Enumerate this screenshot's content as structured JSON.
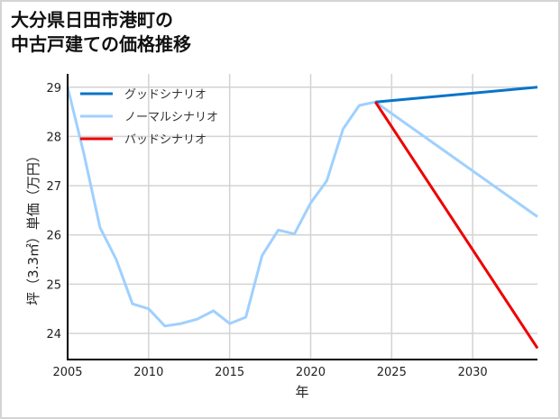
{
  "title": {
    "line1": "大分県日田市港町の",
    "line2": "中古戸建ての価格推移"
  },
  "colors": {
    "good": "#0a74c8",
    "normal": "#9fd0ff",
    "bad": "#ee0000",
    "grid": "#d3d3d3",
    "axis": "#000000",
    "frame": "#d4d4d4"
  },
  "chart_data": {
    "type": "line",
    "title": "大分県日田市港町の中古戸建ての価格推移",
    "xlabel": "年",
    "ylabel": "坪（3.3㎡）単価（万円）",
    "xlim": [
      2005,
      2034
    ],
    "ylim": [
      23.47,
      29.27
    ],
    "xticks": [
      2005,
      2010,
      2015,
      2020,
      2025,
      2030
    ],
    "yticks": [
      24,
      25,
      26,
      27,
      28,
      29
    ],
    "grid": true,
    "legend_position": "upper left",
    "series": [
      {
        "name": "グッドシナリオ",
        "color": "#0a74c8",
        "x": [
          2024,
          2034
        ],
        "y": [
          28.7,
          29.0
        ]
      },
      {
        "name": "ノーマルシナリオ",
        "color": "#9fd0ff",
        "x": [
          2005,
          2006,
          2007,
          2008,
          2009,
          2010,
          2011,
          2012,
          2013,
          2014,
          2015,
          2016,
          2017,
          2018,
          2019,
          2020,
          2021,
          2022,
          2023,
          2024,
          2034
        ],
        "y": [
          29.0,
          27.65,
          26.15,
          25.5,
          24.6,
          24.5,
          24.15,
          24.2,
          24.29,
          24.46,
          24.2,
          24.33,
          25.58,
          26.1,
          26.02,
          26.65,
          27.1,
          28.15,
          28.63,
          28.7,
          26.37
        ]
      },
      {
        "name": "バッドシナリオ",
        "color": "#ee0000",
        "x": [
          2024,
          2034
        ],
        "y": [
          28.7,
          23.7
        ]
      }
    ]
  }
}
